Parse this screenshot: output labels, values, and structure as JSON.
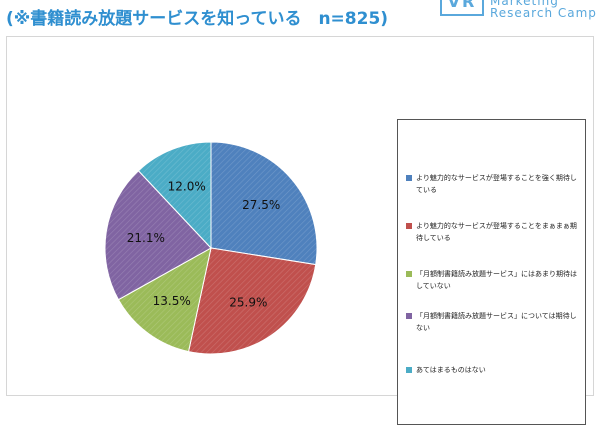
{
  "header": {
    "title": "(※書籍読み放題サービスを知っている　n=825)",
    "logo": {
      "mark": "VR",
      "line1": "Marketing",
      "line2": "Research Camp"
    }
  },
  "chart_data": {
    "type": "pie",
    "categories": [
      "より魅力的なサービスが登場することを強く期待している",
      "より魅力的なサービスが登場することをまぁまぁ期待している",
      "「月額制書籍読み放題サービス」にはあまり期待はしていない",
      "「月額制書籍読み放題サービス」については期待しない",
      "あてはまるものはない"
    ],
    "values": [
      27.5,
      25.9,
      13.5,
      21.1,
      12.0
    ],
    "labels": [
      "27.5%",
      "25.9%",
      "13.5%",
      "21.1%",
      "12.0%"
    ],
    "colors": [
      "#4f81bd",
      "#c0504d",
      "#9bbb59",
      "#8064a2",
      "#4bacc6"
    ],
    "start_angle": "12 o'clock",
    "direction": "clockwise",
    "legend_position": "right"
  }
}
